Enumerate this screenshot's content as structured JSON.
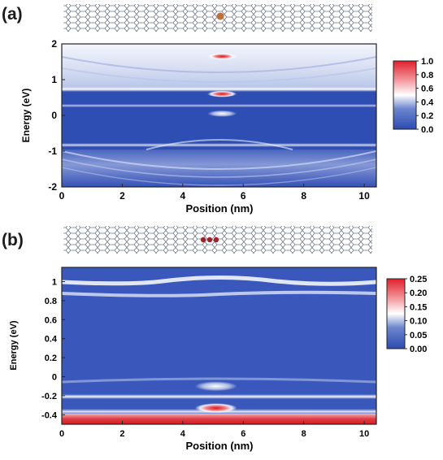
{
  "panels": [
    {
      "label": "(a)",
      "xlabel": "Position (nm)",
      "ylabel": "Energy (eV)",
      "colorbar_ticks": [
        "1.0",
        "0.8",
        "0.6",
        "0.4",
        "0.2",
        "0.0"
      ]
    },
    {
      "label": "(b)",
      "xlabel": "Position (nm)",
      "ylabel": "Energy (eV)",
      "colorbar_ticks": [
        "0.25",
        "0.20",
        "0.15",
        "0.10",
        "0.05",
        "0.00"
      ]
    }
  ],
  "chart_data": [
    {
      "type": "heatmap",
      "panel": "(a)",
      "xlabel": "Position (nm)",
      "ylabel": "Energy (eV)",
      "xlim": [
        0,
        10.4
      ],
      "ylim": [
        -2,
        2
      ],
      "x_ticks": [
        0,
        2,
        4,
        6,
        8,
        10
      ],
      "y_ticks": [
        -2,
        -1,
        0,
        1,
        2
      ],
      "colorbar": {
        "min": 0.0,
        "max": 1.0,
        "ticks": [
          0.0,
          0.2,
          0.4,
          0.6,
          0.8,
          1.0
        ]
      },
      "colormap": [
        "#2b4bb0",
        "#ffffff",
        "#e0202a"
      ],
      "features": [
        {
          "kind": "localized state",
          "x": 5.3,
          "energy": 1.65,
          "intensity": 0.95
        },
        {
          "kind": "localized state",
          "x": 5.3,
          "energy": 0.6,
          "intensity": 0.85
        },
        {
          "kind": "band edge",
          "energy": 0.72,
          "intensity": 0.5
        },
        {
          "kind": "band edge",
          "energy": 0.25,
          "intensity": 0.35
        },
        {
          "kind": "band edge",
          "energy": -0.8,
          "intensity": 0.4
        },
        {
          "kind": "localized state",
          "x": 5.3,
          "energy": 0.05,
          "intensity": 0.3
        }
      ]
    },
    {
      "type": "heatmap",
      "panel": "(b)",
      "xlabel": "Position (nm)",
      "ylabel": "Energy (eV)",
      "xlim": [
        0,
        10.4
      ],
      "ylim": [
        -0.5,
        1.15
      ],
      "x_ticks": [
        0,
        2,
        4,
        6,
        8,
        10
      ],
      "y_ticks": [
        -0.4,
        -0.2,
        0.0,
        0.2,
        0.4,
        0.6,
        0.8,
        1.0
      ],
      "colorbar": {
        "min": 0.0,
        "max": 0.25,
        "ticks": [
          0.0,
          0.05,
          0.1,
          0.15,
          0.2,
          0.25
        ]
      },
      "colormap": [
        "#2b4bb0",
        "#ffffff",
        "#e0202a"
      ],
      "features": [
        {
          "kind": "band",
          "energy": 1.0,
          "intensity": 0.12
        },
        {
          "kind": "band",
          "energy": 0.88,
          "intensity": 0.1
        },
        {
          "kind": "localized state",
          "x": 5.1,
          "energy": -0.1,
          "intensity": 0.1
        },
        {
          "kind": "band",
          "energy": -0.22,
          "intensity": 0.1
        },
        {
          "kind": "localized state",
          "x": 5.1,
          "energy": -0.33,
          "intensity": 0.25
        },
        {
          "kind": "band edge",
          "energy": -0.47,
          "intensity": 0.22
        }
      ]
    }
  ]
}
